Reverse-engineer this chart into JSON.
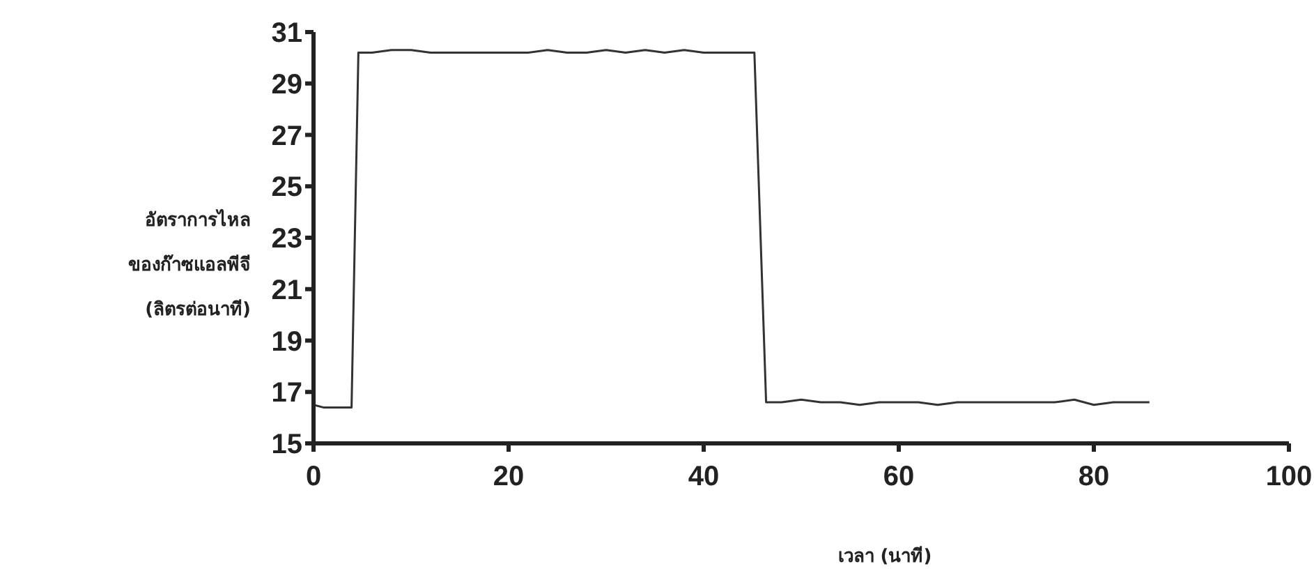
{
  "chart_data": {
    "type": "line",
    "xlabel": "เวลา (นาที)",
    "ylabel": "อัตราการไหล\nของก๊าซแอลพีจี\n(ลิตรต่อนาที)",
    "x": [
      0,
      1,
      2,
      3.9,
      4.6,
      6,
      8,
      10,
      12,
      14,
      16,
      18,
      20,
      22,
      24,
      26,
      28,
      30,
      32,
      34,
      36,
      38,
      40,
      42,
      45.2,
      46.4,
      48,
      50,
      52,
      54,
      56,
      58,
      60,
      62,
      64,
      66,
      68,
      70,
      72,
      74,
      76,
      78,
      80,
      82,
      84,
      85.7
    ],
    "series": [
      {
        "color": "#333333",
        "values": [
          16.5,
          16.4,
          16.4,
          16.4,
          30.2,
          30.2,
          30.3,
          30.3,
          30.2,
          30.2,
          30.2,
          30.2,
          30.2,
          30.2,
          30.3,
          30.2,
          30.2,
          30.3,
          30.2,
          30.3,
          30.2,
          30.3,
          30.2,
          30.2,
          30.2,
          16.6,
          16.6,
          16.7,
          16.6,
          16.6,
          16.5,
          16.6,
          16.6,
          16.6,
          16.5,
          16.6,
          16.6,
          16.6,
          16.6,
          16.6,
          16.6,
          16.7,
          16.5,
          16.6,
          16.6,
          16.6
        ]
      }
    ],
    "xlim": [
      0,
      100
    ],
    "xticks": [
      0,
      20,
      40,
      60,
      80,
      100
    ],
    "ylim": [
      15,
      31
    ],
    "yticks": [
      15,
      17,
      19,
      21,
      23,
      25,
      27,
      29,
      31
    ],
    "grid": false,
    "legend": false,
    "marker": "none",
    "line_style": "solid"
  }
}
